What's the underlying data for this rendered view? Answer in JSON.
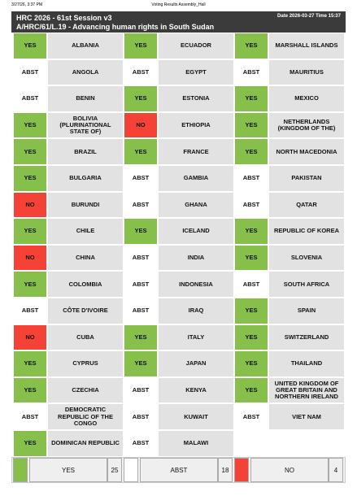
{
  "header": {
    "timestamp": "3/27/26, 3:37 PM",
    "page_title": "Voting Results Assembly_Hall",
    "session": "HRC 2026 - 61st Session v3",
    "resolution": "A/HRC/61/L.19 - Advancing human rights in South Sudan",
    "date_time": "Date 2026-03-27 Time 15:37"
  },
  "columns": [
    [
      {
        "vote": "YES",
        "country": "ALBANIA"
      },
      {
        "vote": "ABST",
        "country": "ANGOLA"
      },
      {
        "vote": "ABST",
        "country": "BENIN"
      },
      {
        "vote": "YES",
        "country": "BOLIVIA (PLURINATIONAL STATE OF)"
      },
      {
        "vote": "YES",
        "country": "BRAZIL"
      },
      {
        "vote": "YES",
        "country": "BULGARIA"
      },
      {
        "vote": "NO",
        "country": "BURUNDI"
      },
      {
        "vote": "YES",
        "country": "CHILE"
      },
      {
        "vote": "NO",
        "country": "CHINA"
      },
      {
        "vote": "YES",
        "country": "COLOMBIA"
      },
      {
        "vote": "ABST",
        "country": "CÔTE D'IVOIRE"
      },
      {
        "vote": "NO",
        "country": "CUBA"
      },
      {
        "vote": "YES",
        "country": "CYPRUS"
      },
      {
        "vote": "YES",
        "country": "CZECHIA"
      },
      {
        "vote": "ABST",
        "country": "DEMOCRATIC REPUBLIC OF THE CONGO"
      },
      {
        "vote": "YES",
        "country": "DOMINICAN REPUBLIC"
      }
    ],
    [
      {
        "vote": "YES",
        "country": "ECUADOR"
      },
      {
        "vote": "ABST",
        "country": "EGYPT"
      },
      {
        "vote": "YES",
        "country": "ESTONIA"
      },
      {
        "vote": "NO",
        "country": "ETHIOPIA"
      },
      {
        "vote": "YES",
        "country": "FRANCE"
      },
      {
        "vote": "ABST",
        "country": "GAMBIA"
      },
      {
        "vote": "ABST",
        "country": "GHANA"
      },
      {
        "vote": "YES",
        "country": "ICELAND"
      },
      {
        "vote": "ABST",
        "country": "INDIA"
      },
      {
        "vote": "ABST",
        "country": "INDONESIA"
      },
      {
        "vote": "ABST",
        "country": "IRAQ"
      },
      {
        "vote": "YES",
        "country": "ITALY"
      },
      {
        "vote": "YES",
        "country": "JAPAN"
      },
      {
        "vote": "ABST",
        "country": "KENYA"
      },
      {
        "vote": "ABST",
        "country": "KUWAIT"
      },
      {
        "vote": "ABST",
        "country": "MALAWI"
      }
    ],
    [
      {
        "vote": "YES",
        "country": "MARSHALL ISLANDS"
      },
      {
        "vote": "ABST",
        "country": "MAURITIUS"
      },
      {
        "vote": "YES",
        "country": "MEXICO"
      },
      {
        "vote": "YES",
        "country": "NETHERLANDS (KINGDOM OF THE)"
      },
      {
        "vote": "YES",
        "country": "NORTH MACEDONIA"
      },
      {
        "vote": "ABST",
        "country": "PAKISTAN"
      },
      {
        "vote": "ABST",
        "country": "QATAR"
      },
      {
        "vote": "YES",
        "country": "REPUBLIC OF KOREA"
      },
      {
        "vote": "YES",
        "country": "SLOVENIA"
      },
      {
        "vote": "ABST",
        "country": "SOUTH AFRICA"
      },
      {
        "vote": "YES",
        "country": "SPAIN"
      },
      {
        "vote": "YES",
        "country": "SWITZERLAND"
      },
      {
        "vote": "YES",
        "country": "THAILAND"
      },
      {
        "vote": "YES",
        "country": "UNITED KINGDOM OF GREAT BRITAIN AND NORTHERN IRELAND"
      },
      {
        "vote": "ABST",
        "country": "VIET NAM"
      }
    ]
  ],
  "totals": [
    {
      "label": "YES",
      "count": 25,
      "color": "#86c04a"
    },
    {
      "label": "ABST",
      "count": 18,
      "color": "#ffffff"
    },
    {
      "label": "NO",
      "count": 4,
      "color": "#f44336"
    }
  ]
}
